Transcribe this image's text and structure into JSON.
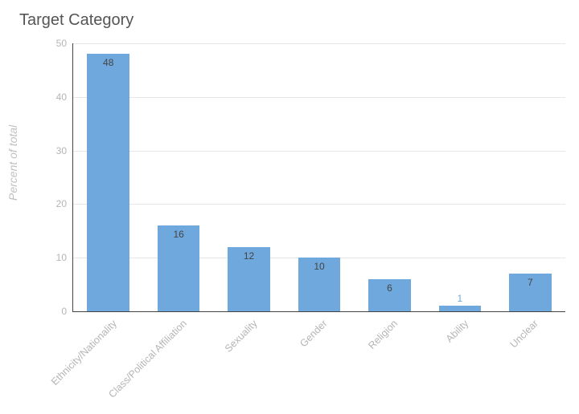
{
  "chart": {
    "type": "bar",
    "title": "Target Category",
    "title_fontsize": 20,
    "title_color": "#555555",
    "ylabel": "Percent of total",
    "ylabel_color": "#c0c0c0",
    "ylabel_fontstyle": "italic",
    "background_color": "#ffffff",
    "axis_color": "#444444",
    "grid_color": "#e6e6e6",
    "tick_label_color": "#b5b5b5",
    "bar_color": "#6fa8dc",
    "value_label_color": "#444444",
    "value_label_special_color": "#6fa8dc",
    "value_label_fontsize": 12,
    "xtick_fontsize": 12.5,
    "xtick_rotation_deg": -45,
    "ylim": [
      0,
      50
    ],
    "ytick_step": 10,
    "yticks": [
      0,
      10,
      20,
      30,
      40,
      50
    ],
    "bar_width_ratio": 0.6,
    "categories": [
      "Ethnicity/Nationality",
      "Class/Political Affiliation",
      "Sexuality",
      "Gender",
      "Religion",
      "Ability",
      "Unclear"
    ],
    "values": [
      48,
      16,
      12,
      10,
      6,
      1,
      7
    ],
    "value_label_inside": [
      true,
      true,
      true,
      true,
      true,
      false,
      true
    ]
  }
}
